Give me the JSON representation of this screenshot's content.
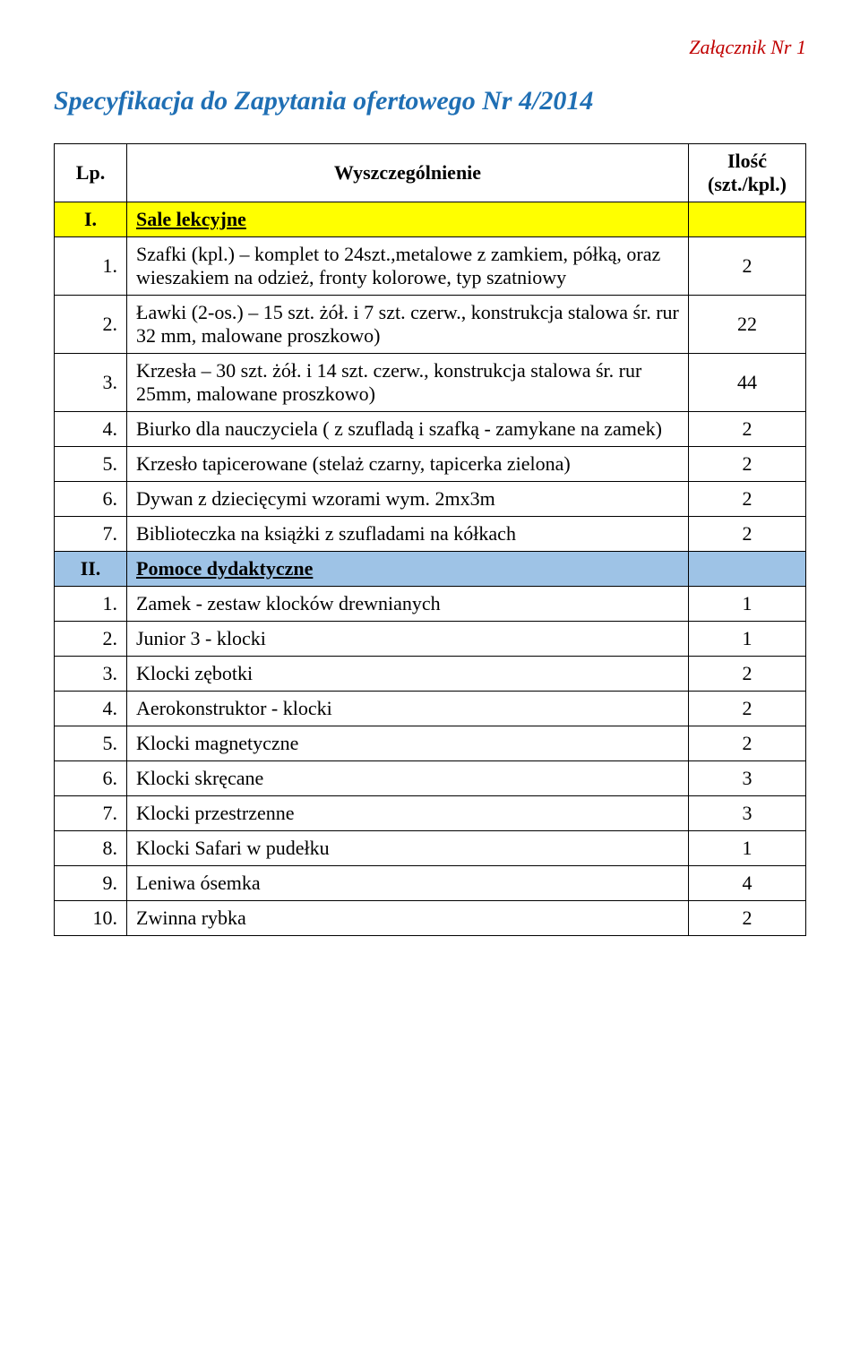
{
  "attachment_label": "Załącznik Nr 1",
  "title": "Specyfikacja do Zapytania ofertowego Nr 4/2014",
  "header": {
    "lp": "Lp.",
    "desc": "Wyszczególnienie",
    "qty": "Ilość (szt./kpl.)"
  },
  "section1": {
    "num": "I.",
    "title": "Sale lekcyjne",
    "rows": [
      {
        "lp": "1.",
        "desc": "Szafki (kpl.) – komplet to 24szt.,metalowe z zamkiem, półką, oraz wieszakiem na odzież, fronty kolorowe, typ szatniowy",
        "qty": "2"
      },
      {
        "lp": "2.",
        "desc": "Ławki (2-os.) – 15 szt. żół. i  7 szt. czerw., konstrukcja stalowa  śr. rur 32 mm, malowane proszkowo)",
        "qty": "22"
      },
      {
        "lp": "3.",
        "desc": "Krzesła – 30 szt. żół. i 14 szt. czerw., konstrukcja stalowa śr. rur 25mm, malowane proszkowo)",
        "qty": "44"
      },
      {
        "lp": "4.",
        "desc": "Biurko dla nauczyciela ( z szufladą i szafką - zamykane na zamek)",
        "qty": "2"
      },
      {
        "lp": "5.",
        "desc": "Krzesło tapicerowane (stelaż czarny, tapicerka zielona)",
        "qty": "2"
      },
      {
        "lp": "6.",
        "desc": "Dywan  z dziecięcymi wzorami wym. 2mx3m",
        "qty": "2"
      },
      {
        "lp": "7.",
        "desc": "Biblioteczka na książki z szufladami na kółkach",
        "qty": "2"
      }
    ]
  },
  "section2": {
    "num": "II.",
    "title": "Pomoce dydaktyczne",
    "rows": [
      {
        "lp": "1.",
        "desc": "Zamek - zestaw klocków drewnianych",
        "qty": "1"
      },
      {
        "lp": "2.",
        "desc": "Junior 3 - klocki",
        "qty": "1"
      },
      {
        "lp": "3.",
        "desc": "Klocki zębotki",
        "qty": "2"
      },
      {
        "lp": "4.",
        "desc": "Aerokonstruktor - klocki",
        "qty": "2"
      },
      {
        "lp": "5.",
        "desc": "Klocki magnetyczne",
        "qty": "2"
      },
      {
        "lp": "6.",
        "desc": "Klocki skręcane",
        "qty": "3"
      },
      {
        "lp": "7.",
        "desc": "Klocki przestrzenne",
        "qty": "3"
      },
      {
        "lp": "8.",
        "desc": "Klocki Safari w pudełku",
        "qty": "1"
      },
      {
        "lp": "9.",
        "desc": "Leniwa ósemka",
        "qty": "4"
      },
      {
        "lp": "10.",
        "desc": "Zwinna rybka",
        "qty": "2"
      }
    ]
  }
}
